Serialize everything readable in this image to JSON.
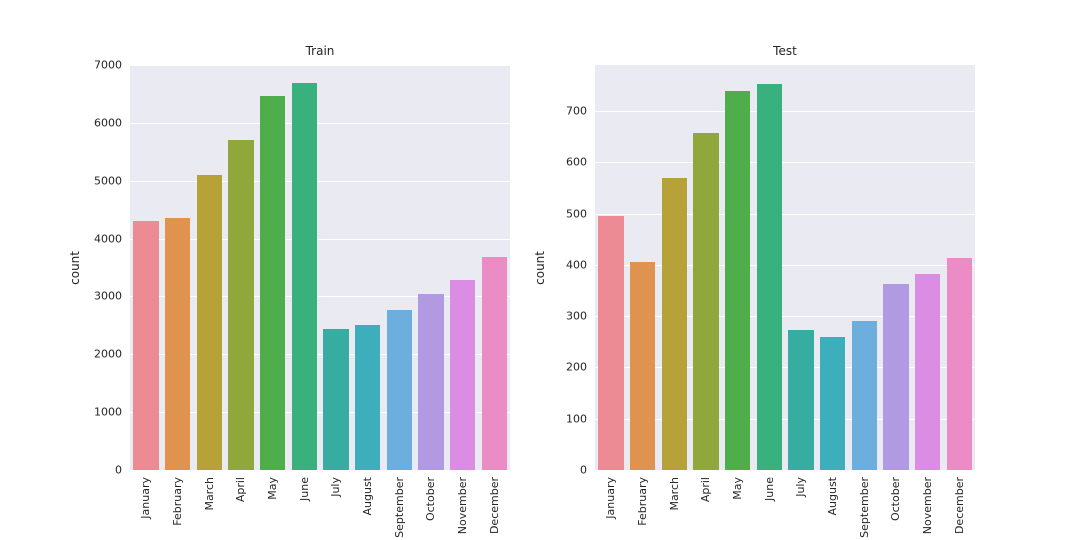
{
  "figure": {
    "background": "#ffffff",
    "axes_background": "#eaeaf2",
    "grid_color": "#ffffff",
    "text_color": "#262626"
  },
  "palette": [
    "#ec8b94",
    "#e0924f",
    "#b7a23a",
    "#90a83b",
    "#4fae4b",
    "#38b17e",
    "#36ada0",
    "#3caebc",
    "#6caede",
    "#b29ae2",
    "#db8ce3",
    "#ec8cc5"
  ],
  "chart_data": [
    {
      "type": "bar",
      "title": "Train",
      "ylabel": "count",
      "xlabel": "",
      "categories": [
        "January",
        "February",
        "March",
        "April",
        "May",
        "June",
        "July",
        "August",
        "September",
        "October",
        "November",
        "December"
      ],
      "values": [
        4300,
        4350,
        5100,
        5700,
        6470,
        6690,
        2430,
        2510,
        2770,
        3050,
        3290,
        3690
      ],
      "ylim": [
        0,
        7000
      ],
      "yticks": [
        0,
        1000,
        2000,
        3000,
        4000,
        5000,
        6000,
        7000
      ],
      "grid": true,
      "legend": false
    },
    {
      "type": "bar",
      "title": "Test",
      "ylabel": "count",
      "xlabel": "",
      "categories": [
        "January",
        "February",
        "March",
        "April",
        "May",
        "June",
        "July",
        "August",
        "September",
        "October",
        "November",
        "December"
      ],
      "values": [
        495,
        406,
        570,
        657,
        739,
        753,
        273,
        260,
        291,
        363,
        382,
        413
      ],
      "ylim": [
        0,
        790
      ],
      "yticks": [
        0,
        100,
        200,
        300,
        400,
        500,
        600,
        700
      ],
      "grid": true,
      "legend": false
    }
  ]
}
